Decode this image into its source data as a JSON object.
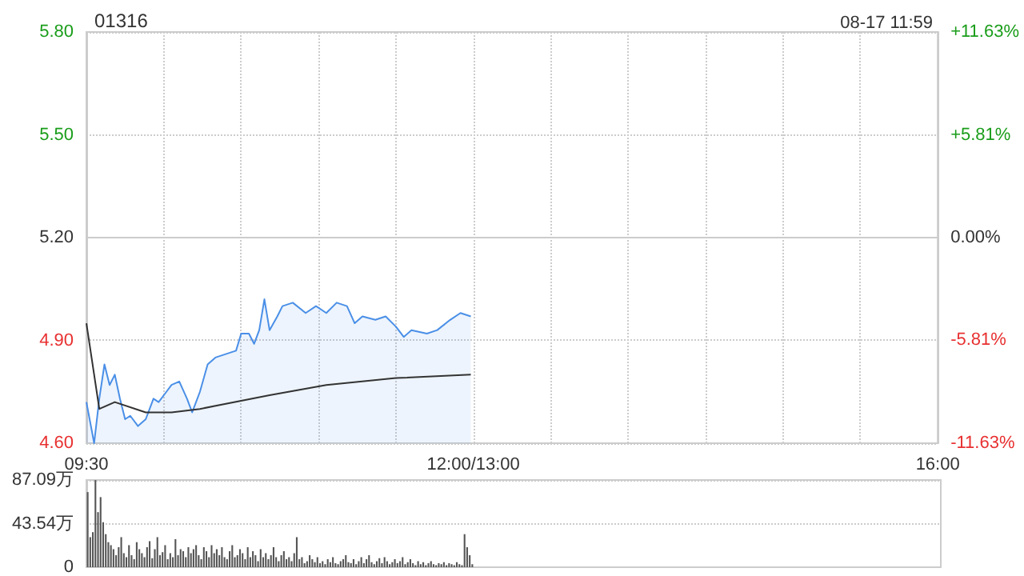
{
  "chart_data": [
    {
      "type": "line",
      "title": "01316",
      "subtitle": "08-17 11:59",
      "categories": [
        "09:30",
        null,
        null,
        null,
        null,
        null,
        null,
        null,
        null,
        null,
        null,
        null,
        null,
        null,
        null,
        null,
        null,
        null,
        null,
        null,
        null,
        null,
        null,
        null,
        null,
        null,
        null,
        null,
        null,
        null,
        null,
        null,
        null,
        null,
        null,
        null,
        null,
        null,
        null,
        null,
        null,
        null,
        null,
        null,
        null,
        null,
        null,
        null,
        null,
        null,
        null,
        null,
        null,
        null,
        null,
        null,
        null,
        null,
        null,
        null,
        null,
        null,
        null,
        null,
        null,
        null,
        null,
        null,
        null,
        null,
        null,
        null,
        null,
        null,
        null,
        null,
        null,
        null,
        null,
        null,
        null,
        null,
        null,
        null,
        null,
        null,
        null,
        null,
        null,
        null,
        null,
        null,
        null,
        null,
        null,
        null,
        null,
        null,
        null,
        null,
        null,
        null,
        null,
        null,
        null,
        null,
        null,
        null,
        null,
        null,
        null,
        null,
        null,
        null,
        null,
        null,
        null,
        null,
        null,
        null,
        null,
        null,
        null,
        null,
        null,
        null,
        null,
        null,
        null,
        null,
        null,
        null,
        null,
        null,
        null,
        null,
        null,
        null,
        null,
        null,
        null,
        null,
        null,
        null,
        null,
        null,
        null,
        null,
        null,
        null,
        "12:00/13:00",
        null,
        null,
        null,
        null,
        null,
        null,
        null,
        null,
        null,
        null,
        null,
        null,
        null,
        null,
        null,
        null,
        null,
        null,
        null,
        null,
        null,
        null,
        null,
        null,
        null,
        null,
        null,
        null,
        null,
        null,
        null,
        null,
        null,
        null,
        null,
        null,
        null,
        null,
        null,
        null,
        null,
        null,
        null,
        null,
        null,
        null,
        null,
        null,
        null,
        null,
        null,
        null,
        null,
        null,
        null,
        null,
        null,
        null,
        null,
        null,
        null,
        null,
        null,
        null,
        null,
        null,
        null,
        null,
        null,
        null,
        null,
        null,
        null,
        null,
        null,
        null,
        null,
        null,
        null,
        null,
        null,
        null,
        null,
        null,
        null,
        null,
        null,
        null,
        null,
        null,
        null,
        null,
        null,
        null,
        null,
        null,
        null,
        null,
        null,
        null,
        null,
        null,
        null,
        null,
        null,
        null,
        null,
        null,
        null,
        null,
        null,
        null,
        null,
        null,
        null,
        null,
        null,
        null,
        null,
        null,
        null,
        null,
        null,
        null,
        null,
        null,
        null,
        null,
        null,
        null,
        null,
        null,
        null,
        null,
        null,
        null,
        null,
        null,
        null,
        null,
        null,
        null,
        null,
        null,
        null,
        null,
        null,
        null,
        null,
        null,
        null,
        null,
        null,
        null,
        null,
        null,
        null,
        null,
        null,
        null,
        null,
        null,
        null,
        null,
        null,
        null,
        null,
        null,
        null,
        null,
        null,
        null,
        null,
        null,
        null,
        null,
        null,
        null,
        null,
        "16:00"
      ],
      "ylim": [
        4.6,
        5.8
      ],
      "yticks": [
        {
          "value": 4.6,
          "label": "4.60"
        },
        {
          "value": 4.9,
          "label": "4.90"
        },
        {
          "value": 5.2,
          "label": "5.20"
        },
        {
          "value": 5.5,
          "label": "5.50"
        },
        {
          "value": 5.8,
          "label": "5.80"
        }
      ],
      "y2lim": [
        -11.63,
        11.63
      ],
      "y2ticks": [
        {
          "value": -11.63,
          "label": "-11.63%"
        },
        {
          "value": -5.81,
          "label": "-5.81%"
        },
        {
          "value": 0,
          "label": "0.00%"
        },
        {
          "value": 5.81,
          "label": "+5.81%"
        },
        {
          "value": 11.63,
          "label": "+11.63%"
        }
      ],
      "grid": true,
      "series": [
        {
          "type": "area",
          "color": "#4a8fe7",
          "values": [
            4.72,
            null,
            null,
            4.6,
            null,
            4.73,
            null,
            4.83,
            null,
            4.77,
            null,
            4.8,
            null,
            4.73,
            null,
            4.67,
            null,
            4.68,
            null,
            null,
            4.65,
            null,
            null,
            4.67,
            null,
            null,
            4.73,
            null,
            4.72,
            null,
            null,
            4.75,
            null,
            4.77,
            null,
            null,
            4.78,
            null,
            null,
            4.73,
            null,
            4.69,
            null,
            null,
            4.75,
            null,
            null,
            4.83,
            null,
            null,
            4.85,
            null,
            null,
            null,
            4.86,
            null,
            null,
            null,
            4.87,
            null,
            4.92,
            null,
            null,
            4.92,
            null,
            4.89,
            null,
            4.93,
            null,
            5.02,
            null,
            4.93,
            null,
            null,
            4.97,
            null,
            5.0,
            null,
            null,
            null,
            5.01,
            null,
            null,
            null,
            null,
            4.98,
            null,
            null,
            null,
            5.0,
            null,
            null,
            null,
            4.98,
            null,
            null,
            null,
            5.01,
            null,
            null,
            null,
            5.0,
            null,
            null,
            4.95,
            null,
            null,
            4.97,
            null,
            null,
            null,
            null,
            4.96,
            null,
            null,
            null,
            4.97,
            null,
            null,
            null,
            4.94,
            null,
            null,
            4.91,
            null,
            null,
            4.93,
            null,
            null,
            null,
            null,
            null,
            4.92,
            null,
            null,
            null,
            4.93,
            null,
            null,
            null,
            null,
            4.96,
            null,
            null,
            null,
            4.98,
            null,
            null,
            null,
            4.97,
            null,
            null,
            null,
            null,
            null,
            null,
            null,
            null,
            null,
            null,
            null,
            null,
            null,
            null,
            null,
            null,
            null,
            null,
            null,
            null,
            null,
            null,
            null,
            null,
            null,
            null,
            null,
            null,
            null,
            null,
            null,
            null,
            null,
            null,
            null,
            null,
            null,
            null,
            null,
            null,
            null,
            null,
            null,
            null,
            null,
            null,
            null,
            null,
            null,
            null,
            null,
            null,
            null,
            null,
            null,
            null,
            null,
            null,
            null,
            null,
            null,
            null,
            null,
            null,
            null,
            null,
            null,
            null,
            null,
            null,
            null,
            null,
            null,
            null,
            null,
            null,
            null,
            null,
            null,
            null,
            null,
            null,
            null,
            null,
            null,
            null,
            null,
            null,
            null,
            null,
            null,
            null,
            null,
            null,
            null,
            null,
            null,
            null,
            null,
            null,
            null,
            null,
            null,
            null,
            null,
            null,
            null,
            null,
            null,
            null,
            null,
            null,
            null,
            null,
            null,
            null,
            null,
            null,
            null,
            null,
            null,
            null,
            null,
            null,
            null,
            null,
            null,
            null,
            null,
            null,
            null,
            null,
            null,
            null,
            null,
            null,
            null,
            null,
            null,
            null,
            null,
            null,
            null,
            null,
            null,
            null,
            null,
            null,
            null,
            null,
            null,
            null,
            null,
            null,
            null,
            null,
            null,
            null,
            null,
            null,
            null,
            null,
            null,
            null,
            null,
            null,
            null,
            null,
            null,
            null,
            null,
            null,
            null,
            null,
            null,
            null,
            null,
            null,
            null,
            null,
            null
          ]
        },
        {
          "type": "line",
          "color": "#333333",
          "values": [
            4.95,
            null,
            null,
            null,
            null,
            4.7,
            null,
            null,
            null,
            null,
            null,
            4.72,
            null,
            null,
            null,
            null,
            null,
            null,
            null,
            null,
            null,
            null,
            null,
            4.69,
            null,
            null,
            null,
            null,
            null,
            null,
            null,
            null,
            null,
            4.69,
            null,
            null,
            null,
            null,
            null,
            null,
            null,
            null,
            null,
            null,
            4.7,
            null,
            null,
            null,
            null,
            null,
            null,
            null,
            null,
            null,
            null,
            null,
            null,
            null,
            null,
            null,
            null,
            null,
            null,
            null,
            null,
            null,
            null,
            null,
            null,
            null,
            null,
            4.74,
            null,
            null,
            null,
            null,
            null,
            null,
            null,
            null,
            null,
            null,
            null,
            null,
            null,
            null,
            null,
            null,
            null,
            null,
            null,
            null,
            null,
            4.77,
            null,
            null,
            null,
            null,
            null,
            null,
            null,
            null,
            null,
            null,
            null,
            null,
            null,
            null,
            null,
            null,
            null,
            null,
            null,
            null,
            null,
            null,
            null,
            null,
            null,
            null,
            4.79,
            null,
            null,
            null,
            null,
            null,
            null,
            null,
            null,
            null,
            null,
            null,
            null,
            null,
            null,
            null,
            null,
            null,
            null,
            null,
            null,
            null,
            null,
            null,
            null,
            null,
            null,
            null,
            null,
            4.8,
            null,
            null,
            null,
            null,
            null,
            null,
            null,
            null,
            null,
            null,
            null,
            null,
            null,
            null,
            null,
            null,
            null,
            null,
            null,
            null,
            null,
            null,
            null,
            null,
            null,
            null,
            null,
            null,
            null,
            null,
            null,
            null,
            null,
            null,
            null,
            null,
            null,
            null,
            null,
            null,
            null,
            null,
            null,
            null,
            null,
            null,
            null,
            null,
            null,
            null,
            null,
            null,
            null,
            null,
            null,
            null,
            null,
            null,
            null,
            null,
            null,
            null,
            null,
            null,
            null,
            null,
            null,
            null,
            null,
            null,
            null,
            null,
            null,
            null,
            null,
            null,
            null,
            null,
            null,
            null,
            null,
            null,
            null,
            null,
            null,
            null,
            null,
            null,
            null,
            null,
            null,
            null,
            null,
            null,
            null,
            null,
            null,
            null,
            null,
            null,
            null,
            null,
            null,
            null,
            null,
            null,
            null,
            null,
            null,
            null,
            null,
            null,
            null,
            null,
            null,
            null,
            null,
            null,
            null,
            null,
            null,
            null,
            null,
            null,
            null,
            null,
            null,
            null,
            null,
            null,
            null,
            null,
            null,
            null,
            null,
            null,
            null,
            null,
            null,
            null,
            null,
            null,
            null,
            null,
            null,
            null,
            null,
            null,
            null,
            null,
            null,
            null,
            null,
            null,
            null,
            null,
            null,
            null,
            null,
            null,
            null,
            null,
            null,
            null,
            null,
            null,
            null,
            null,
            null,
            null,
            null,
            null,
            null,
            null,
            null,
            null,
            null,
            null,
            null,
            null,
            null
          ]
        }
      ]
    },
    {
      "type": "bar",
      "color": "#555555",
      "ylim": [
        0,
        87.09
      ],
      "yticks": [
        {
          "value": 0,
          "label": "0"
        },
        {
          "value": 43.54,
          "label": "43.54万"
        },
        {
          "value": 87.09,
          "label": "87.09万"
        }
      ],
      "grid": "y",
      "tick_labels": "y",
      "categories": [
        null,
        null,
        null,
        null,
        null,
        null,
        null,
        null,
        null,
        null,
        null,
        null,
        null,
        null,
        null,
        null,
        null,
        null,
        null,
        null,
        null,
        null,
        null,
        null,
        null,
        null,
        null,
        null,
        null,
        null,
        null,
        null,
        null,
        null,
        null,
        null,
        null,
        null,
        null,
        null,
        null,
        null,
        null,
        null,
        null,
        null,
        null,
        null,
        null,
        null,
        null,
        null,
        null,
        null,
        null,
        null,
        null,
        null,
        null,
        null,
        null,
        null,
        null,
        null,
        null,
        null,
        null,
        null,
        null,
        null,
        null,
        null,
        null,
        null,
        null,
        null,
        null,
        null,
        null,
        null,
        null,
        null,
        null,
        null,
        null,
        null,
        null,
        null,
        null,
        null,
        null,
        null,
        null,
        null,
        null,
        null,
        null,
        null,
        null,
        null,
        null,
        null,
        null,
        null,
        null,
        null,
        null,
        null,
        null,
        null,
        null,
        null,
        null,
        null,
        null,
        null,
        null,
        null,
        null,
        null,
        null,
        null,
        null,
        null,
        null,
        null,
        null,
        null,
        null,
        null,
        null,
        null,
        null,
        null,
        null,
        null,
        null,
        null,
        null,
        null,
        null,
        null,
        null,
        null,
        null,
        null,
        null,
        null,
        null,
        null,
        null,
        null,
        null,
        null,
        null,
        null,
        null,
        null,
        null,
        null,
        null,
        null,
        null,
        null,
        null,
        null,
        null,
        null,
        null,
        null,
        null,
        null,
        null,
        null,
        null,
        null,
        null,
        null,
        null,
        null,
        null,
        null,
        null,
        null,
        null,
        null,
        null,
        null,
        null,
        null,
        null,
        null,
        null,
        null,
        null,
        null,
        null,
        null,
        null,
        null,
        null,
        null,
        null,
        null,
        null,
        null,
        null,
        null,
        null,
        null,
        null,
        null,
        null,
        null,
        null,
        null,
        null,
        null,
        null,
        null,
        null,
        null,
        null,
        null,
        null,
        null,
        null,
        null,
        null,
        null,
        null,
        null,
        null,
        null,
        null,
        null,
        null,
        null,
        null,
        null,
        null,
        null,
        null,
        null,
        null,
        null,
        null,
        null,
        null,
        null,
        null,
        null,
        null,
        null,
        null,
        null,
        null,
        null,
        null,
        null,
        null,
        null,
        null,
        null,
        null,
        null,
        null,
        null,
        null,
        null,
        null,
        null,
        null,
        null,
        null,
        null,
        null,
        null,
        null,
        null,
        null,
        null,
        null,
        null,
        null,
        null,
        null,
        null,
        null,
        null,
        null,
        null,
        null,
        null,
        null,
        null,
        null,
        null,
        null,
        null,
        null,
        null,
        null,
        null,
        null,
        null,
        null,
        null,
        null,
        null,
        null,
        null,
        null,
        null,
        null,
        null,
        null,
        null,
        null,
        null,
        null,
        null,
        null,
        null,
        null,
        null,
        null,
        null,
        null,
        null,
        null
      ],
      "values": [
        75,
        30,
        35,
        87,
        55,
        70,
        45,
        33,
        25,
        22,
        18,
        12,
        20,
        30,
        14,
        10,
        22,
        12,
        8,
        25,
        18,
        14,
        10,
        20,
        26,
        9,
        18,
        30,
        12,
        15,
        22,
        8,
        14,
        10,
        28,
        12,
        18,
        16,
        10,
        20,
        14,
        18,
        22,
        12,
        8,
        20,
        16,
        10,
        22,
        14,
        18,
        12,
        20,
        10,
        8,
        16,
        22,
        10,
        12,
        18,
        14,
        8,
        20,
        10,
        16,
        12,
        6,
        18,
        10,
        14,
        8,
        12,
        20,
        10,
        6,
        12,
        16,
        8,
        10,
        6,
        14,
        30,
        8,
        10,
        4,
        6,
        12,
        8,
        5,
        10,
        4,
        6,
        3,
        8,
        5,
        10,
        4,
        3,
        6,
        8,
        12,
        5,
        4,
        8,
        3,
        6,
        10,
        4,
        8,
        12,
        5,
        3,
        6,
        9,
        4,
        10,
        6,
        3,
        5,
        8,
        4,
        6,
        10,
        3,
        5,
        8,
        4,
        2,
        6,
        3,
        5,
        2,
        4,
        6,
        3,
        2,
        4,
        3,
        5,
        2,
        4,
        3,
        2,
        5,
        3,
        2,
        33,
        20,
        12,
        3,
        null,
        null,
        null,
        null,
        null,
        null,
        null,
        null,
        null,
        null,
        null,
        null,
        null,
        null,
        null,
        null,
        null,
        null,
        null,
        null,
        null,
        null,
        null,
        null,
        null,
        null,
        null,
        null,
        null,
        null,
        null,
        null,
        null,
        null,
        null,
        null,
        null,
        null,
        null,
        null,
        null,
        null,
        null,
        null,
        null,
        null,
        null,
        null,
        null,
        null,
        null,
        null,
        null,
        null,
        null,
        null,
        null,
        null,
        null,
        null,
        null,
        null,
        null,
        null,
        null,
        null,
        null,
        null,
        null,
        null,
        null,
        null,
        null,
        null,
        null,
        null,
        null,
        null,
        null,
        null,
        null,
        null,
        null,
        null,
        null,
        null,
        null,
        null,
        null,
        null,
        null,
        null,
        null,
        null,
        null,
        null,
        null,
        null,
        null,
        null,
        null,
        null,
        null,
        null,
        null,
        null,
        null,
        null,
        null,
        null,
        null,
        null,
        null,
        null,
        null,
        null,
        null,
        null,
        null,
        null,
        null,
        null,
        null,
        null,
        null,
        null,
        null,
        null,
        null,
        null,
        null,
        null,
        null,
        null,
        null,
        null,
        null,
        null,
        null,
        null,
        null,
        null,
        null,
        null,
        null,
        null,
        null,
        null,
        null,
        null,
        null,
        null,
        null,
        null,
        null,
        null,
        null,
        null,
        null,
        null,
        null,
        null,
        null,
        null,
        null,
        null,
        null,
        null,
        null,
        null,
        null,
        null,
        null,
        null,
        null,
        null,
        null,
        null,
        null,
        null,
        null
      ]
    }
  ]
}
